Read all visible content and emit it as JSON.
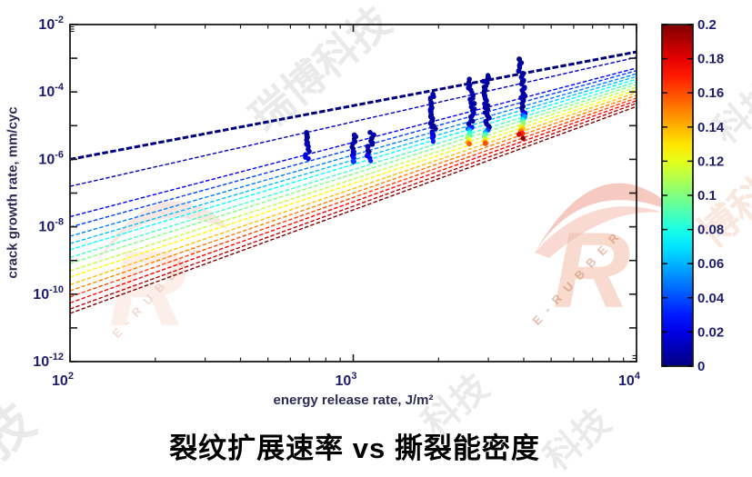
{
  "figure": {
    "title": "裂纹扩展速率 vs 撕裂能密度",
    "watermark": {
      "cn_full": "瑞博科技",
      "cn_triple": "博科技",
      "cn_pair": "科技",
      "cn_char": "技",
      "brand": "E-RUBBER",
      "logo_letter": "R",
      "color_orange": "#e2502e",
      "color_gray": "#b9b9b9"
    }
  },
  "chart_data": {
    "type": "line",
    "title": "",
    "xlabel": "energy release rate, J/m²",
    "ylabel": "crack growth rate, mm/cyc",
    "x_scale": "log",
    "y_scale": "log",
    "xlim": [
      100,
      10000
    ],
    "ylim": [
      1e-12,
      0.01
    ],
    "x_tick_exponents": [
      2,
      3,
      4
    ],
    "y_tick_exponents": [
      -2,
      -4,
      -6,
      -8,
      -10,
      -12
    ],
    "grid": false,
    "colorbar": {
      "min": 0,
      "max": 0.2,
      "ticks": [
        0,
        0.02,
        0.04,
        0.06,
        0.08,
        0.1,
        0.12,
        0.14,
        0.16,
        0.18,
        0.2
      ],
      "colormap": "jet",
      "position": "right"
    },
    "series_description": "crack growth power-law lines, one per parameter value (colorbar 0 to 0.2); log y at x=100 and x=10000 J/m2",
    "lines": [
      {
        "v": 0.0,
        "log_y_at_100": -6.0,
        "log_y_at_10000": -2.81,
        "thick": true
      },
      {
        "v": 0.0125,
        "log_y_at_100": -6.8,
        "log_y_at_10000": -2.97,
        "thick": false
      },
      {
        "v": 0.025,
        "log_y_at_100": -7.7,
        "log_y_at_10000": -3.29,
        "thick": false
      },
      {
        "v": 0.0375,
        "log_y_at_100": -8.01,
        "log_y_at_10000": -3.37,
        "thick": false
      },
      {
        "v": 0.05,
        "log_y_at_100": -8.28,
        "log_y_at_10000": -3.46,
        "thick": false
      },
      {
        "v": 0.0625,
        "log_y_at_100": -8.5,
        "log_y_at_10000": -3.54,
        "thick": false
      },
      {
        "v": 0.075,
        "log_y_at_100": -8.68,
        "log_y_at_10000": -3.62,
        "thick": false
      },
      {
        "v": 0.0875,
        "log_y_at_100": -8.91,
        "log_y_at_10000": -3.7,
        "thick": false
      },
      {
        "v": 0.1,
        "log_y_at_100": -9.09,
        "log_y_at_10000": -3.78,
        "thick": false
      },
      {
        "v": 0.1125,
        "log_y_at_100": -9.31,
        "log_y_at_10000": -3.86,
        "thick": false
      },
      {
        "v": 0.125,
        "log_y_at_100": -9.49,
        "log_y_at_10000": -3.94,
        "thick": false
      },
      {
        "v": 0.1375,
        "log_y_at_100": -9.72,
        "log_y_at_10000": -4.02,
        "thick": false
      },
      {
        "v": 0.15,
        "log_y_at_100": -9.9,
        "log_y_at_10000": -4.1,
        "thick": false
      },
      {
        "v": 0.1625,
        "log_y_at_100": -10.08,
        "log_y_at_10000": -4.18,
        "thick": false
      },
      {
        "v": 0.175,
        "log_y_at_100": -10.26,
        "log_y_at_10000": -4.26,
        "thick": false
      },
      {
        "v": 0.1875,
        "log_y_at_100": -10.44,
        "log_y_at_10000": -4.34,
        "thick": false
      },
      {
        "v": 0.2,
        "log_y_at_100": -10.57,
        "log_y_at_10000": -4.43,
        "thick": false
      }
    ],
    "scatter_clusters": [
      {
        "x": 690,
        "log_y_top": -5.2,
        "log_y_bottom": -6.0,
        "tail_fraction": 0.2,
        "tail_color_max": 0.1
      },
      {
        "x": 1000,
        "log_y_top": -5.26,
        "log_y_bottom": -6.05,
        "tail_fraction": 0.25,
        "tail_color_max": 0.18
      },
      {
        "x": 1150,
        "log_y_top": -5.23,
        "log_y_bottom": -6.05,
        "tail_fraction": 0.22,
        "tail_color_max": 0.16
      },
      {
        "x": 1900,
        "log_y_top": -4.05,
        "log_y_bottom": -5.45,
        "tail_fraction": 0.18,
        "tail_color_max": 0.14
      },
      {
        "x": 2600,
        "log_y_top": -3.64,
        "log_y_bottom": -5.55,
        "tail_fraction": 0.3,
        "tail_color_max": 0.78
      },
      {
        "x": 2950,
        "log_y_top": -3.48,
        "log_y_bottom": -5.52,
        "tail_fraction": 0.22,
        "tail_color_max": 0.8
      },
      {
        "x": 3950,
        "log_y_top": -3.05,
        "log_y_bottom": -5.35,
        "tail_fraction": 0.33,
        "tail_color_max": 1.0
      }
    ]
  }
}
